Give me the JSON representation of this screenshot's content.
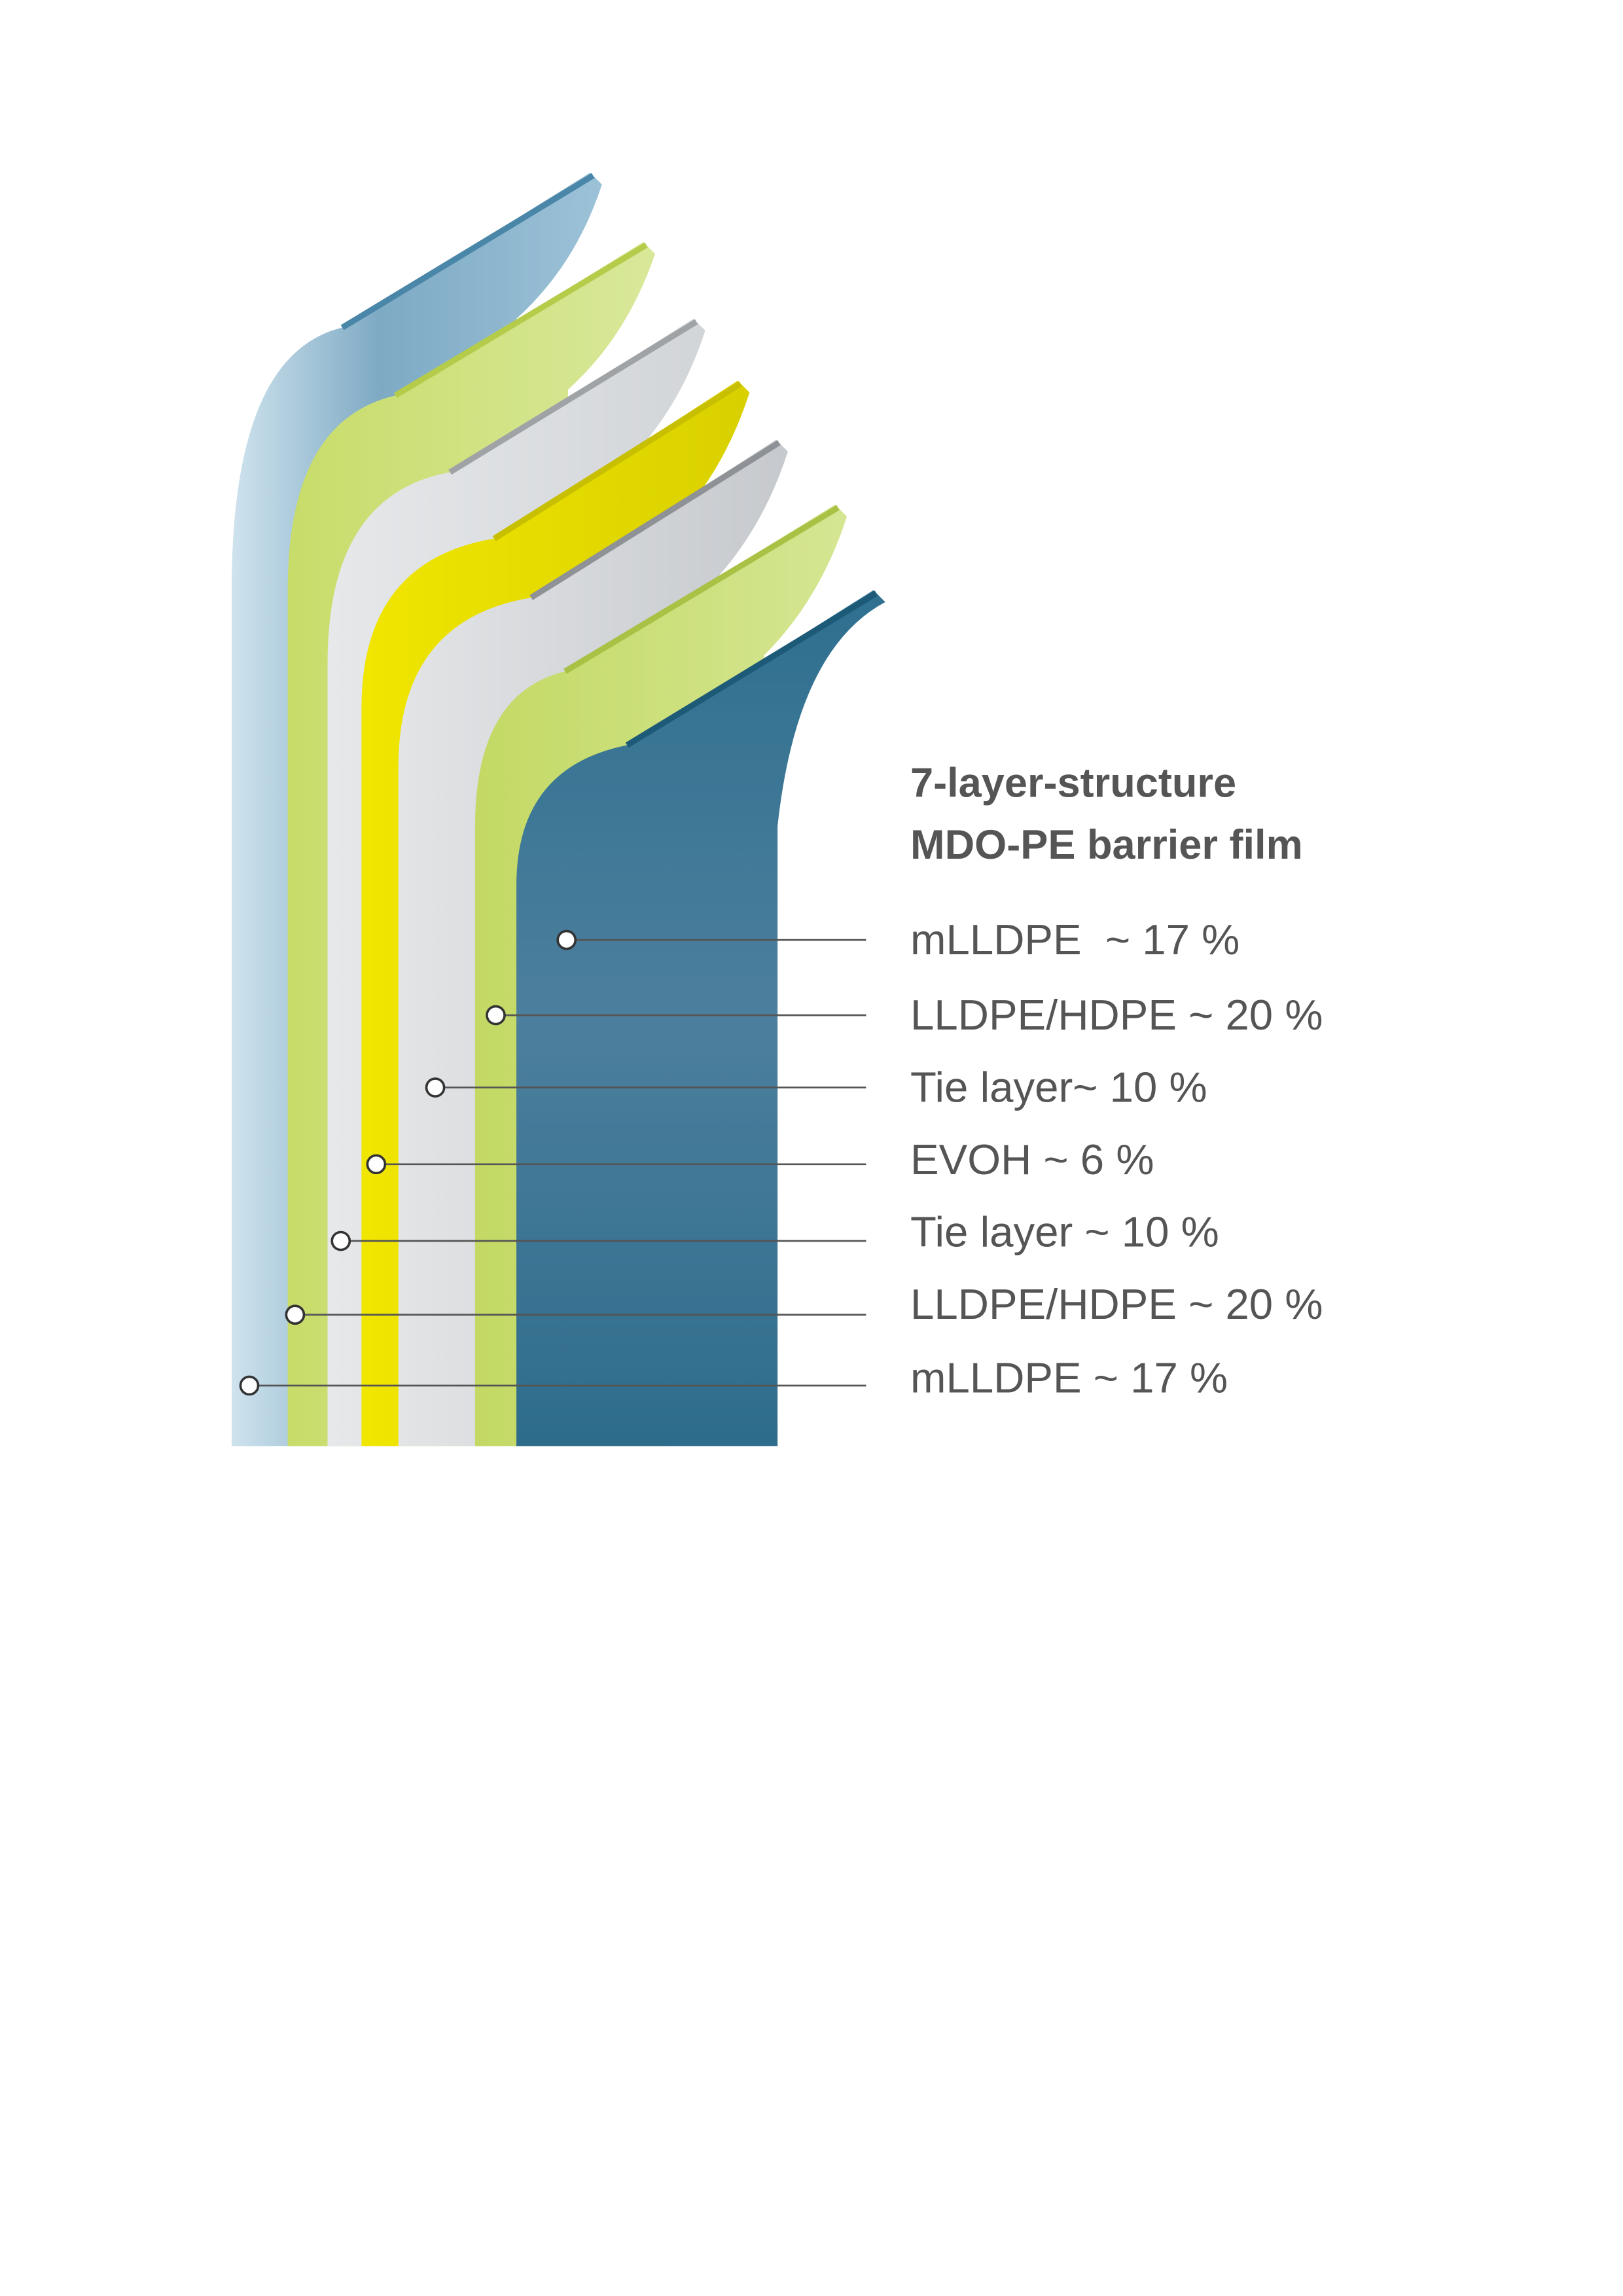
{
  "title": [
    "7-layer-structure",
    "MDO-PE barrier film"
  ],
  "layers": [
    {
      "label": "mLLDPE  ~ 17 %"
    },
    {
      "label": "LLDPE/HDPE ~ 20 %"
    },
    {
      "label": "Tie layer~ 10 %"
    },
    {
      "label": "EVOH ~ 6 %"
    },
    {
      "label": "Tie layer ~ 10 %"
    },
    {
      "label": "LLDPE/HDPE ~ 20 %"
    },
    {
      "label": "mLLDPE ~ 17 %"
    }
  ]
}
